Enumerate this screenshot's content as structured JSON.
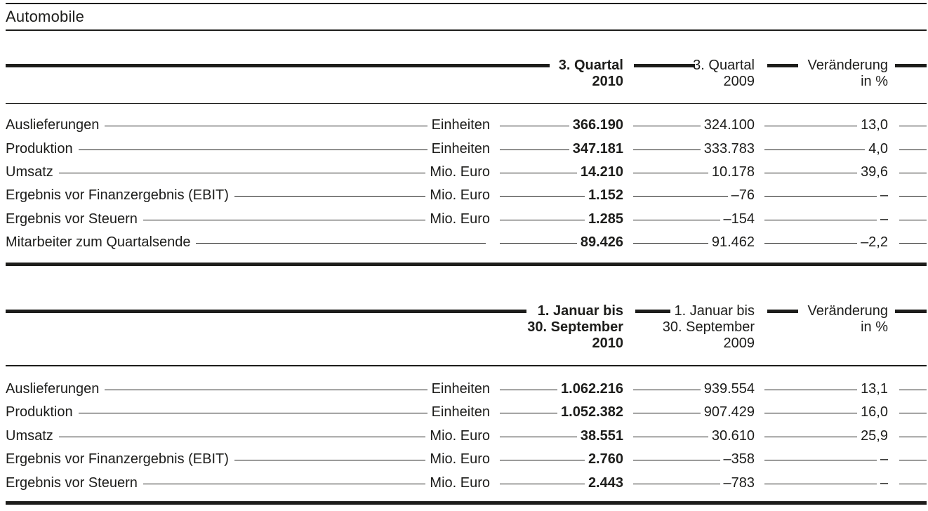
{
  "meta": {
    "ink_color": "#1d1d1b",
    "background": "#ffffff"
  },
  "title": "Automobile",
  "t1": {
    "h": {
      "c1a": "3. Quartal",
      "c1b": "2010",
      "c2a": "3. Quartal",
      "c2b": "2009",
      "c3a": "Veränderung",
      "c3b": "in %"
    },
    "rows": [
      {
        "label": "Auslieferungen",
        "unit": "Einheiten",
        "v1": "366.190",
        "v2": "324.100",
        "chg": "13,0"
      },
      {
        "label": "Produktion",
        "unit": "Einheiten",
        "v1": "347.181",
        "v2": "333.783",
        "chg": "4,0"
      },
      {
        "label": "Umsatz",
        "unit": "Mio. Euro",
        "v1": "14.210",
        "v2": "10.178",
        "chg": "39,6"
      },
      {
        "label": "Ergebnis vor Finanzergebnis (EBIT)",
        "unit": "Mio. Euro",
        "v1": "1.152",
        "v2": "–76",
        "chg": "–"
      },
      {
        "label": "Ergebnis vor Steuern",
        "unit": "Mio. Euro",
        "v1": "1.285",
        "v2": "–154",
        "chg": "–"
      },
      {
        "label": "Mitarbeiter zum Quartalsende",
        "unit": "",
        "v1": "89.426",
        "v2": "91.462",
        "chg": "–2,2"
      }
    ]
  },
  "t2": {
    "h": {
      "c1a": "1. Januar bis",
      "c1b": "30. September",
      "c1c": "2010",
      "c2a": "1. Januar bis",
      "c2b": "30. September",
      "c2c": "2009",
      "c3a": "Veränderung",
      "c3b": "in %"
    },
    "rows": [
      {
        "label": "Auslieferungen",
        "unit": "Einheiten",
        "v1": "1.062.216",
        "v2": "939.554",
        "chg": "13,1"
      },
      {
        "label": "Produktion",
        "unit": "Einheiten",
        "v1": "1.052.382",
        "v2": "907.429",
        "chg": "16,0"
      },
      {
        "label": "Umsatz",
        "unit": "Mio. Euro",
        "v1": "38.551",
        "v2": "30.610",
        "chg": "25,9"
      },
      {
        "label": "Ergebnis vor Finanzergebnis (EBIT)",
        "unit": "Mio. Euro",
        "v1": "2.760",
        "v2": "–358",
        "chg": "–"
      },
      {
        "label": "Ergebnis vor Steuern",
        "unit": "Mio. Euro",
        "v1": "2.443",
        "v2": "–783",
        "chg": "–"
      }
    ]
  }
}
